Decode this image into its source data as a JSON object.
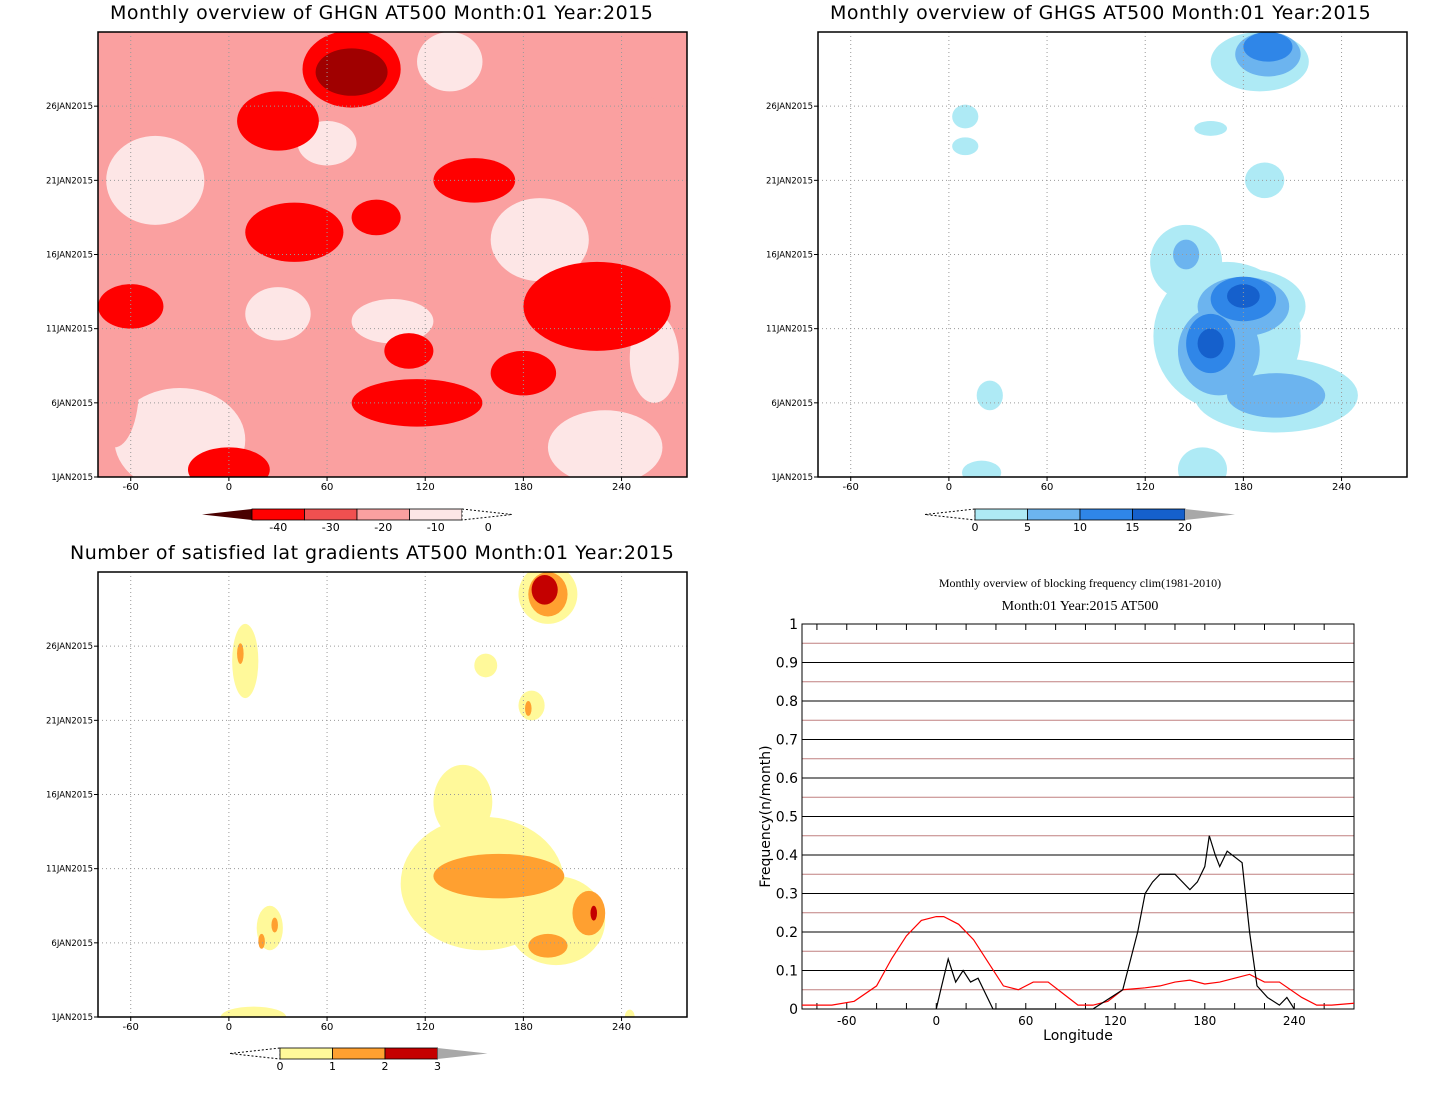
{
  "panel_titles": {
    "ghgn": "Monthly overview of GHGN AT500 Month:01 Year:2015",
    "ghgs": "Monthly overview of GHGS AT500 Month:01 Year:2015",
    "grad": "Number of satisfied lat gradients AT500 Month:01 Year:2015",
    "freq_title": "Monthly overview of blocking frequency clim(1981-2010)",
    "freq_subtitle": "Month:01 Year:2015  AT500"
  },
  "axes": {
    "lon_ticks": [
      "-60",
      "0",
      "60",
      "120",
      "180",
      "240"
    ],
    "date_ticks": [
      "1JAN2015",
      "6JAN2015",
      "11JAN2015",
      "16JAN2015",
      "21JAN2015",
      "26JAN2015"
    ]
  },
  "colorbars": {
    "ghgn": {
      "labels": [
        "-40",
        "-30",
        "-20",
        "-10",
        "0"
      ],
      "colors": [
        "#a00000",
        "#ff0000",
        "#f05050",
        "#faa0a0",
        "#fde6e6"
      ]
    },
    "ghgs": {
      "labels": [
        "0",
        "5",
        "10",
        "15",
        "20"
      ],
      "colors": [
        "#aeeaf5",
        "#6cb4ef",
        "#2f86e8",
        "#1560cc",
        "#a8a8a8"
      ]
    },
    "grad": {
      "labels": [
        "0",
        "1",
        "2",
        "3"
      ],
      "colors": [
        "#fff99a",
        "#ffa030",
        "#c40000",
        "#a8a8a8"
      ]
    }
  },
  "chart_data": [
    {
      "type": "heatmap",
      "title": "Monthly overview of GHGN AT500 Month:01 Year:2015",
      "x_ticks": [
        "-60",
        "0",
        "60",
        "120",
        "180",
        "240"
      ],
      "y_ticks": [
        "1JAN2015",
        "6JAN2015",
        "11JAN2015",
        "16JAN2015",
        "21JAN2015",
        "26JAN2015"
      ],
      "xlim": [
        -80,
        280
      ],
      "levels": [
        -40,
        -30,
        -20,
        -10,
        0
      ],
      "blobs": [
        {
          "lon": 75,
          "day": 28.5,
          "rlon": 30,
          "rday": 2.6,
          "level": -30
        },
        {
          "lon": 75,
          "day": 28.3,
          "rlon": 22,
          "rday": 1.6,
          "level": -40
        },
        {
          "lon": 40,
          "day": 17.5,
          "rlon": 30,
          "rday": 2.0,
          "level": -30
        },
        {
          "lon": 225,
          "day": 12.5,
          "rlon": 45,
          "rday": 3.0,
          "level": -30
        },
        {
          "lon": 115,
          "day": 6.0,
          "rlon": 40,
          "rday": 1.6,
          "level": -30
        },
        {
          "lon": 30,
          "day": 25.0,
          "rlon": 25,
          "rday": 2.0,
          "level": -30
        },
        {
          "lon": 0,
          "day": 1.5,
          "rlon": 25,
          "rday": 1.5,
          "level": -30
        },
        {
          "lon": -60,
          "day": 12.5,
          "rlon": 20,
          "rday": 1.5,
          "level": -30
        },
        {
          "lon": 180,
          "day": 8.0,
          "rlon": 20,
          "rday": 1.5,
          "level": -30
        },
        {
          "lon": 150,
          "day": 21.0,
          "rlon": 25,
          "rday": 1.5,
          "level": -30
        },
        {
          "lon": 110,
          "day": 9.5,
          "rlon": 15,
          "rday": 1.2,
          "level": -30
        },
        {
          "lon": 90,
          "day": 18.5,
          "rlon": 15,
          "rday": 1.2,
          "level": -30
        },
        {
          "lon": -30,
          "day": 3.5,
          "rlon": 40,
          "rday": 3.5,
          "level": 0
        },
        {
          "lon": 230,
          "day": 3.0,
          "rlon": 35,
          "rday": 2.5,
          "level": 0
        },
        {
          "lon": -45,
          "day": 21.0,
          "rlon": 30,
          "rday": 3.0,
          "level": 0
        },
        {
          "lon": 190,
          "day": 17.0,
          "rlon": 30,
          "rday": 2.8,
          "level": 0
        },
        {
          "lon": 135,
          "day": 29.0,
          "rlon": 20,
          "rday": 2.0,
          "level": 0
        },
        {
          "lon": 30,
          "day": 12.0,
          "rlon": 20,
          "rday": 1.8,
          "level": 0
        },
        {
          "lon": 100,
          "day": 11.5,
          "rlon": 25,
          "rday": 1.5,
          "level": 0
        },
        {
          "lon": 260,
          "day": 9.0,
          "rlon": 15,
          "rday": 3.0,
          "level": 0
        },
        {
          "lon": 60,
          "day": 23.5,
          "rlon": 18,
          "rday": 1.5,
          "level": 0
        },
        {
          "lon": 240,
          "day": 25.0,
          "rlon": 30,
          "rday": 2.0,
          "level": -10
        },
        {
          "lon": -70,
          "day": 7.0,
          "rlon": 15,
          "rday": 4.0,
          "level": -10
        },
        {
          "lon": 140,
          "day": 14.0,
          "rlon": 25,
          "rday": 1.5,
          "level": -10
        },
        {
          "lon": 55,
          "day": 2.0,
          "rlon": 25,
          "rday": 1.5,
          "level": -10
        },
        {
          "lon": -10,
          "day": 26.5,
          "rlon": 20,
          "rday": 1.5,
          "level": -10
        },
        {
          "lon": 170,
          "day": 4.0,
          "rlon": 25,
          "rday": 1.5,
          "level": -10
        }
      ]
    },
    {
      "type": "heatmap",
      "title": "Monthly overview of GHGS AT500 Month:01 Year:2015",
      "x_ticks": [
        "-60",
        "0",
        "60",
        "120",
        "180",
        "240"
      ],
      "y_ticks": [
        "1JAN2015",
        "6JAN2015",
        "11JAN2015",
        "16JAN2015",
        "21JAN2015",
        "26JAN2015"
      ],
      "xlim": [
        -80,
        280
      ],
      "levels": [
        0,
        5,
        10,
        15,
        20
      ],
      "blobs": [
        {
          "lon": 183,
          "day": 12.5,
          "rlon": 35,
          "rday": 2.5,
          "level": 0
        },
        {
          "lon": 170,
          "day": 10.5,
          "rlon": 45,
          "rday": 5.0,
          "level": 0
        },
        {
          "lon": 200,
          "day": 6.5,
          "rlon": 50,
          "rday": 2.5,
          "level": 0
        },
        {
          "lon": 145,
          "day": 15.5,
          "rlon": 22,
          "rday": 2.5,
          "level": 0
        },
        {
          "lon": 190,
          "day": 29.0,
          "rlon": 30,
          "rday": 2.0,
          "level": 0
        },
        {
          "lon": 193,
          "day": 21.0,
          "rlon": 12,
          "rday": 1.2,
          "level": 0
        },
        {
          "lon": 155,
          "day": 1.5,
          "rlon": 15,
          "rday": 1.5,
          "level": 0
        },
        {
          "lon": 25,
          "day": 6.5,
          "rlon": 8,
          "rday": 1.0,
          "level": 0
        },
        {
          "lon": 10,
          "day": 25.3,
          "rlon": 8,
          "rday": 0.8,
          "level": 0
        },
        {
          "lon": 10,
          "day": 23.3,
          "rlon": 8,
          "rday": 0.6,
          "level": 0
        },
        {
          "lon": 160,
          "day": 24.5,
          "rlon": 10,
          "rday": 0.5,
          "level": 0
        },
        {
          "lon": 20,
          "day": 1.3,
          "rlon": 12,
          "rday": 0.8,
          "level": 0
        },
        {
          "lon": 180,
          "day": 12.5,
          "rlon": 28,
          "rday": 2.0,
          "level": 5
        },
        {
          "lon": 165,
          "day": 9.5,
          "rlon": 25,
          "rday": 3.0,
          "level": 5
        },
        {
          "lon": 200,
          "day": 6.5,
          "rlon": 30,
          "rday": 1.5,
          "level": 5
        },
        {
          "lon": 145,
          "day": 16.0,
          "rlon": 8,
          "rday": 1.0,
          "level": 5
        },
        {
          "lon": 195,
          "day": 29.5,
          "rlon": 20,
          "rday": 1.5,
          "level": 5
        },
        {
          "lon": 180,
          "day": 13.0,
          "rlon": 20,
          "rday": 1.5,
          "level": 10
        },
        {
          "lon": 160,
          "day": 10.0,
          "rlon": 15,
          "rday": 2.0,
          "level": 10
        },
        {
          "lon": 195,
          "day": 30.0,
          "rlon": 15,
          "rday": 1.0,
          "level": 10
        },
        {
          "lon": 180,
          "day": 13.2,
          "rlon": 10,
          "rday": 0.8,
          "level": 15
        },
        {
          "lon": 160,
          "day": 10.0,
          "rlon": 8,
          "rday": 1.0,
          "level": 15
        }
      ]
    },
    {
      "type": "heatmap",
      "title": "Number of satisfied lat gradients AT500 Month:01 Year:2015",
      "x_ticks": [
        "-60",
        "0",
        "60",
        "120",
        "180",
        "240"
      ],
      "y_ticks": [
        "1JAN2015",
        "6JAN2015",
        "11JAN2015",
        "16JAN2015",
        "21JAN2015",
        "26JAN2015"
      ],
      "xlim": [
        -80,
        280
      ],
      "levels": [
        0,
        1,
        2,
        3
      ],
      "blobs": [
        {
          "lon": 155,
          "day": 10.0,
          "rlon": 50,
          "rday": 4.5,
          "level": 0
        },
        {
          "lon": 143,
          "day": 15.5,
          "rlon": 18,
          "rday": 2.5,
          "level": 0
        },
        {
          "lon": 200,
          "day": 7.5,
          "rlon": 30,
          "rday": 3.0,
          "level": 0
        },
        {
          "lon": 195,
          "day": 29.5,
          "rlon": 18,
          "rday": 2.0,
          "level": 0
        },
        {
          "lon": 185,
          "day": 22.0,
          "rlon": 8,
          "rday": 1.0,
          "level": 0
        },
        {
          "lon": 157,
          "day": 24.7,
          "rlon": 7,
          "rday": 0.8,
          "level": 0
        },
        {
          "lon": 10,
          "day": 25.0,
          "rlon": 8,
          "rday": 2.5,
          "level": 0
        },
        {
          "lon": 25,
          "day": 7.0,
          "rlon": 8,
          "rday": 1.5,
          "level": 0
        },
        {
          "lon": 15,
          "day": 1.0,
          "rlon": 20,
          "rday": 0.7,
          "level": 0
        },
        {
          "lon": 245,
          "day": 1.0,
          "rlon": 3,
          "rday": 0.5,
          "level": 0
        },
        {
          "lon": 165,
          "day": 10.5,
          "rlon": 40,
          "rday": 1.5,
          "level": 1
        },
        {
          "lon": 195,
          "day": 5.8,
          "rlon": 12,
          "rday": 0.8,
          "level": 1
        },
        {
          "lon": 220,
          "day": 8.0,
          "rlon": 10,
          "rday": 1.5,
          "level": 1
        },
        {
          "lon": 195,
          "day": 29.5,
          "rlon": 12,
          "rday": 1.5,
          "level": 1
        },
        {
          "lon": 7,
          "day": 25.5,
          "rlon": 2,
          "rday": 0.7,
          "level": 1
        },
        {
          "lon": 28,
          "day": 7.2,
          "rlon": 2,
          "rday": 0.5,
          "level": 1
        },
        {
          "lon": 20,
          "day": 6.1,
          "rlon": 2,
          "rday": 0.5,
          "level": 1
        },
        {
          "lon": 183,
          "day": 21.8,
          "rlon": 2,
          "rday": 0.5,
          "level": 1
        },
        {
          "lon": 193,
          "day": 29.8,
          "rlon": 8,
          "rday": 1.0,
          "level": 2
        },
        {
          "lon": 223,
          "day": 8.0,
          "rlon": 2,
          "rday": 0.5,
          "level": 2
        }
      ]
    },
    {
      "type": "line",
      "title": "Monthly overview of blocking frequency clim(1981-2010)",
      "subtitle": "Month:01 Year:2015  AT500",
      "xlabel": "Longitude",
      "ylabel": "Frequency(n/month)",
      "xlim": [
        -90,
        280
      ],
      "ylim": [
        0,
        1
      ],
      "x_ticks": [
        "-60",
        "0",
        "60",
        "120",
        "180",
        "240"
      ],
      "y_ticks": [
        "0",
        "0.1",
        "0.2",
        "0.3",
        "0.4",
        "0.5",
        "0.6",
        "0.7",
        "0.8",
        "0.9",
        "1"
      ],
      "series": [
        {
          "color": "#ff0000",
          "x": [
            -90,
            -70,
            -55,
            -40,
            -30,
            -20,
            -10,
            0,
            5,
            15,
            25,
            35,
            45,
            55,
            65,
            75,
            85,
            95,
            105,
            115,
            125,
            140,
            150,
            160,
            170,
            180,
            190,
            200,
            210,
            220,
            230,
            245,
            255,
            265,
            280
          ],
          "y": [
            0.01,
            0.01,
            0.02,
            0.06,
            0.13,
            0.19,
            0.23,
            0.24,
            0.24,
            0.22,
            0.18,
            0.12,
            0.06,
            0.05,
            0.07,
            0.07,
            0.04,
            0.01,
            0.01,
            0.02,
            0.05,
            0.055,
            0.06,
            0.07,
            0.075,
            0.065,
            0.07,
            0.08,
            0.09,
            0.07,
            0.07,
            0.03,
            0.01,
            0.01,
            0.015
          ]
        },
        {
          "color": "#000000",
          "x": [
            0,
            3,
            8,
            13,
            18,
            23,
            28,
            33,
            38,
            105,
            125,
            135,
            140,
            145,
            150,
            160,
            170,
            175,
            180,
            183,
            187,
            190,
            195,
            205,
            210,
            215,
            222,
            230,
            235,
            240
          ],
          "y": [
            0,
            0.05,
            0.13,
            0.07,
            0.1,
            0.07,
            0.08,
            0.04,
            0,
            0,
            0.05,
            0.2,
            0.3,
            0.33,
            0.35,
            0.35,
            0.31,
            0.33,
            0.37,
            0.45,
            0.4,
            0.37,
            0.41,
            0.38,
            0.2,
            0.06,
            0.03,
            0.01,
            0.03,
            0
          ]
        }
      ],
      "h_ref_lines": [
        0.05,
        0.15,
        0.25,
        0.35,
        0.45,
        0.55,
        0.65,
        0.75,
        0.85,
        0.95
      ]
    }
  ]
}
